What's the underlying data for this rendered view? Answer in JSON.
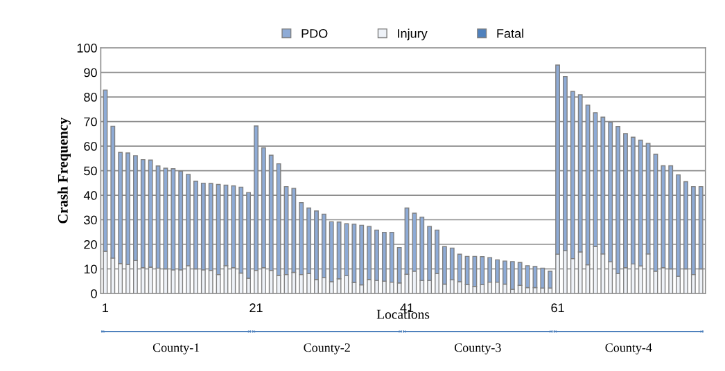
{
  "chart_data": {
    "type": "bar",
    "stacked": true,
    "categories": [
      "1",
      null,
      null,
      null,
      null,
      null,
      null,
      null,
      null,
      null,
      null,
      null,
      null,
      null,
      null,
      null,
      null,
      null,
      null,
      null,
      "21",
      null,
      null,
      null,
      null,
      null,
      null,
      null,
      null,
      null,
      null,
      null,
      null,
      null,
      null,
      null,
      null,
      null,
      null,
      null,
      "41",
      null,
      null,
      null,
      null,
      null,
      null,
      null,
      null,
      null,
      null,
      null,
      null,
      null,
      null,
      null,
      null,
      null,
      null,
      null,
      "61",
      null,
      null,
      null,
      null,
      null,
      null,
      null,
      null,
      null,
      null,
      null,
      null,
      null,
      null,
      null,
      null,
      null,
      null,
      null
    ],
    "series": [
      {
        "name": "Fatal",
        "color": "#4f81bd",
        "values": [
          0,
          0,
          0,
          0,
          0,
          0,
          0,
          0,
          0,
          0,
          0,
          0,
          0,
          0,
          0,
          0,
          0,
          0,
          0,
          0,
          0,
          0,
          0,
          0,
          0,
          0,
          0,
          0,
          0,
          0,
          0,
          0,
          0,
          0,
          0,
          0,
          0,
          0,
          0,
          0,
          0,
          0,
          0,
          0,
          0,
          0,
          0,
          0,
          0,
          0,
          0,
          0,
          0,
          0,
          0,
          0,
          0,
          0,
          0,
          0,
          0,
          0,
          0,
          0,
          0,
          0,
          0,
          0,
          0,
          0,
          0,
          0,
          0,
          0,
          0,
          0,
          0,
          0,
          0,
          0
        ]
      },
      {
        "name": "Injury",
        "color": "#eef2f8",
        "values": [
          17.2,
          14.4,
          12.2,
          11.8,
          13.4,
          10.5,
          10.7,
          10.3,
          10.0,
          9.6,
          9.6,
          11.3,
          10.0,
          9.6,
          9.4,
          7.7,
          11.3,
          10.5,
          8.3,
          6.2,
          9.4,
          10.5,
          9.4,
          7.4,
          7.7,
          8.6,
          7.7,
          8.1,
          5.7,
          6.5,
          4.8,
          6.0,
          7.2,
          4.5,
          3.5,
          5.7,
          5.3,
          5.0,
          4.6,
          4.3,
          7.8,
          9.1,
          5.3,
          5.3,
          8.1,
          3.8,
          5.6,
          4.8,
          3.6,
          2.9,
          3.6,
          4.6,
          4.6,
          3.8,
          1.7,
          3.3,
          2.4,
          2.4,
          2.2,
          2.2,
          16.0,
          17.4,
          14.2,
          16.9,
          11.7,
          19.1,
          16.1,
          12.9,
          8.1,
          10.5,
          12.0,
          11.2,
          16.1,
          9.1,
          10.5,
          10.0,
          7.0,
          10.0,
          7.7,
          10.0
        ]
      },
      {
        "name": "PDO",
        "color": "#8eabd6",
        "values": [
          65.6,
          53.7,
          45.2,
          45.4,
          42.7,
          44.0,
          43.6,
          41.6,
          41.0,
          41.2,
          40.2,
          37.2,
          35.7,
          35.3,
          35.4,
          36.7,
          32.8,
          33.3,
          35.0,
          34.9,
          58.8,
          48.8,
          46.9,
          45.4,
          35.8,
          34.2,
          29.3,
          26.7,
          27.9,
          25.8,
          24.4,
          23.1,
          21.2,
          23.7,
          24.3,
          21.6,
          20.5,
          19.9,
          20.3,
          14.4,
          27.0,
          23.6,
          25.8,
          22.0,
          17.7,
          15.3,
          12.9,
          11.2,
          11.5,
          12.2,
          11.4,
          10.0,
          9.1,
          9.4,
          11.3,
          9.3,
          8.9,
          8.6,
          8.1,
          6.9,
          77.0,
          70.9,
          68.1,
          64.0,
          65.0,
          54.5,
          55.7,
          56.8,
          59.9,
          54.6,
          51.6,
          51.2,
          45.0,
          47.6,
          41.5,
          42.0,
          41.3,
          35.5,
          35.8,
          33.5
        ]
      }
    ],
    "ylim": [
      0,
      100
    ],
    "yticks": [
      0,
      10,
      20,
      30,
      40,
      50,
      60,
      70,
      80,
      90,
      100
    ],
    "grid": "y",
    "legend": "top",
    "xlabel": "Locations",
    "ylabel": "Crash Frequency",
    "annotations": [
      "County-1",
      "County-2",
      "County-3",
      "County-4"
    ]
  }
}
